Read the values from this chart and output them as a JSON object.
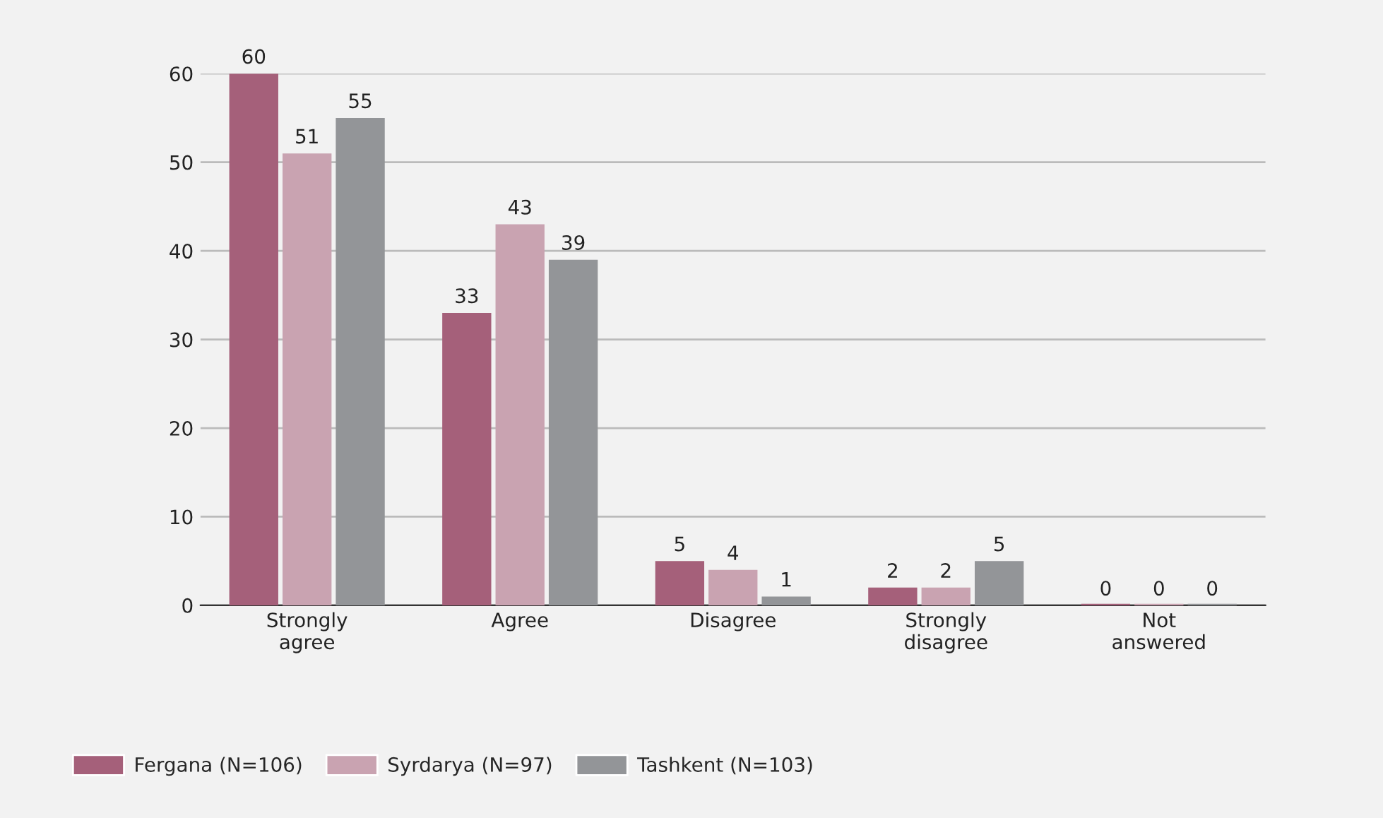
{
  "chart_data": {
    "type": "bar",
    "categories": [
      "Strongly\nagree",
      "Agree",
      "Disagree",
      "Strongly\ndisagree",
      "Not\nanswered"
    ],
    "series": [
      {
        "name": "Fergana (N=106)",
        "color": "#a5607a",
        "values": [
          60,
          33,
          5,
          2,
          0
        ]
      },
      {
        "name": "Syrdarya (N=97)",
        "color": "#c9a3b1",
        "values": [
          51,
          43,
          4,
          2,
          0
        ]
      },
      {
        "name": "Tashkent (N=103)",
        "color": "#939598",
        "values": [
          55,
          39,
          1,
          5,
          0
        ]
      }
    ],
    "ylim": [
      0,
      60
    ],
    "yticks": [
      0,
      10,
      20,
      30,
      40,
      50,
      60
    ],
    "grid": "y",
    "legend": "bottom",
    "data_labels": true
  }
}
